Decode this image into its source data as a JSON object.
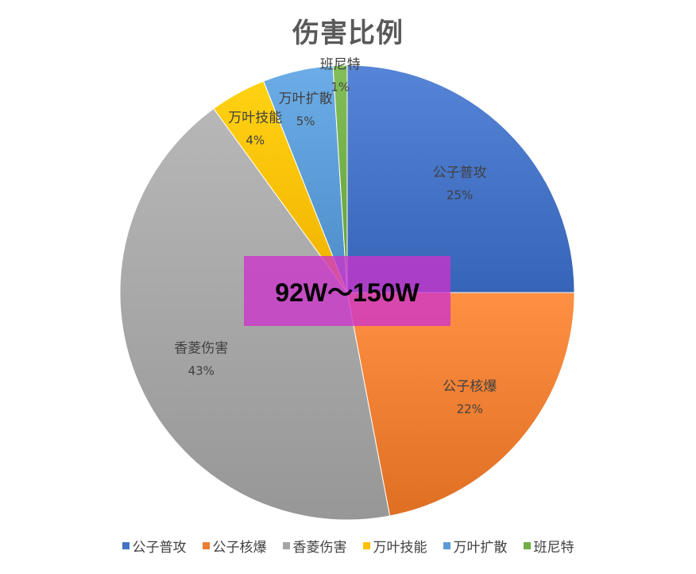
{
  "chart_data": {
    "type": "pie",
    "title": "伤害比例",
    "categories": [
      "公子普攻",
      "公子核爆",
      "香菱伤害",
      "万叶技能",
      "万叶扩散",
      "班尼特"
    ],
    "values": [
      25,
      22,
      43,
      4,
      5,
      1
    ],
    "value_labels": [
      "25%",
      "22%",
      "43%",
      "4%",
      "5%",
      "1%"
    ],
    "colors": [
      "#4472C4",
      "#ED7D31",
      "#A5A5A5",
      "#FFC000",
      "#5B9BD5",
      "#70AD47"
    ],
    "start_angle_deg": 0,
    "direction": "clockwise",
    "legend_position": "bottom"
  },
  "annotation": {
    "text": "92W～150W",
    "color": "#CC33CC"
  }
}
